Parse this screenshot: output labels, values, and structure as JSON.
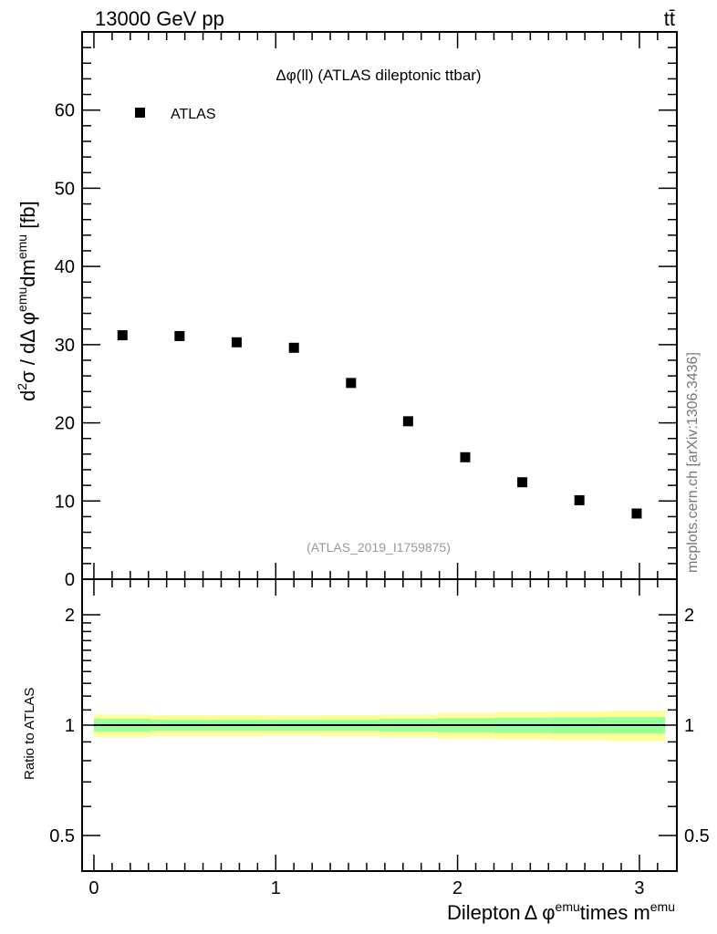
{
  "header": {
    "left": "13000 GeV pp",
    "right": "tt̄"
  },
  "side_label": "mcplots.cern.ch [arXiv:1306.3436]",
  "chart_data": [
    {
      "type": "scatter",
      "title": "Δφ(ll) (ATLAS dileptonic ttbar)",
      "watermark": "(ATLAS_2019_I1759875)",
      "ylabel": "d²σ / dΔφ^emu dm^emu [fb]",
      "ylabel_parts": {
        "a": "d",
        "b": "2",
        "c": "σ / dΔ φ",
        "d": "emu",
        "e": "dm",
        "f": "emu",
        "g": " [fb]"
      },
      "xlim": [
        -0.065,
        3.206
      ],
      "ylim": [
        0,
        70
      ],
      "yticks": [
        0,
        10,
        20,
        30,
        40,
        50,
        60
      ],
      "legend": {
        "entries": [
          "ATLAS"
        ],
        "placement": "top-left"
      },
      "series": [
        {
          "name": "ATLAS",
          "x": [
            0.157,
            0.471,
            0.785,
            1.1,
            1.414,
            1.728,
            2.042,
            2.356,
            2.67,
            2.985
          ],
          "y": [
            31.2,
            31.1,
            30.3,
            29.6,
            25.1,
            20.2,
            15.6,
            12.4,
            10.1,
            8.4
          ]
        }
      ]
    },
    {
      "type": "area",
      "ylabel": "Ratio to ATLAS",
      "xlabel_parts": {
        "a": "Dilepton",
        "b": "Δ φ",
        "c": "emu",
        "d": "times m",
        "e": "emu"
      },
      "yscale": "log",
      "ylim": [
        0.4,
        2.5
      ],
      "yticks": [
        0.5,
        1,
        2
      ],
      "ytick_labels": [
        "0.5",
        "1",
        "2"
      ],
      "xticks": [
        0,
        1,
        2,
        3
      ],
      "xtick_labels": [
        "0",
        "1",
        "2",
        "3"
      ],
      "bin_edges": [
        0,
        0.314,
        0.628,
        0.942,
        1.257,
        1.571,
        1.885,
        2.199,
        2.513,
        2.827,
        3.142
      ],
      "green_band_halfwidth": [
        0.04,
        0.035,
        0.035,
        0.035,
        0.035,
        0.04,
        0.045,
        0.048,
        0.05,
        0.052
      ],
      "yellow_band_halfwidth": [
        0.07,
        0.065,
        0.065,
        0.063,
        0.065,
        0.07,
        0.08,
        0.085,
        0.09,
        0.095
      ],
      "colors": {
        "green": "#99ff99",
        "yellow": "#ffff99"
      }
    }
  ]
}
